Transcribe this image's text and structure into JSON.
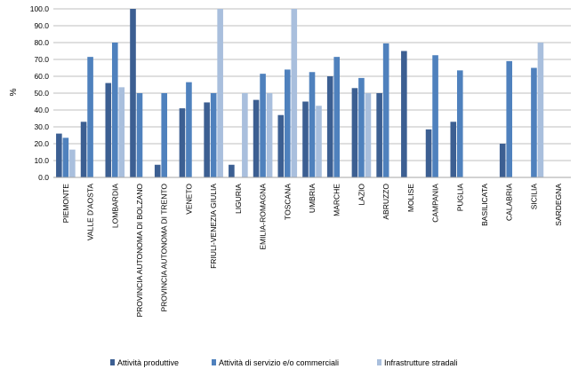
{
  "chart_data": {
    "type": "bar",
    "ylabel": "%",
    "ylim": [
      0,
      100
    ],
    "yticks": [
      "0.0",
      "10.0",
      "20.0",
      "30.0",
      "40.0",
      "50.0",
      "60.0",
      "70.0",
      "80.0",
      "90.0",
      "100.0"
    ],
    "grid": true,
    "legend_position": "bottom",
    "categories": [
      "PIEMONTE",
      "VALLE D'AOSTA",
      "LOMBARDIA",
      "PROVINCIA AUTONOMA DI BOLZANO",
      "PROVINCIA AUTONOMA DI TRENTO",
      "VENETO",
      "FRIULI-VENEZIA GIULIA",
      "LIGURIA",
      "EMILIA-ROMAGNA",
      "TOSCANA",
      "UMBRIA",
      "MARCHE",
      "LAZIO",
      "ABRUZZO",
      "MOLISE",
      "CAMPANIA",
      "PUGLIA",
      "BASILICATA",
      "CALABRIA",
      "SICILIA",
      "SARDEGNA"
    ],
    "series": [
      {
        "name": "Attività produttive",
        "color": "#3c5f92",
        "values": [
          26,
          33,
          56,
          100,
          7.5,
          41,
          44.5,
          7.5,
          46,
          37,
          45,
          60,
          53,
          50,
          75,
          28.5,
          33,
          null,
          20,
          null,
          null
        ]
      },
      {
        "name": "Attività di servizio e/o commerciali",
        "color": "#4f81bd",
        "values": [
          23.5,
          71.5,
          80,
          50,
          50,
          56.5,
          50,
          null,
          61.5,
          64,
          62.5,
          71.5,
          59,
          79.5,
          null,
          72.5,
          63.5,
          null,
          69,
          65,
          null
        ]
      },
      {
        "name": "Infrastrutture stradali",
        "color": "#a9bfdd",
        "values": [
          16.5,
          null,
          53.5,
          null,
          null,
          null,
          100,
          50,
          50,
          100,
          42.5,
          null,
          50,
          null,
          null,
          null,
          null,
          null,
          null,
          80,
          null
        ]
      }
    ]
  }
}
